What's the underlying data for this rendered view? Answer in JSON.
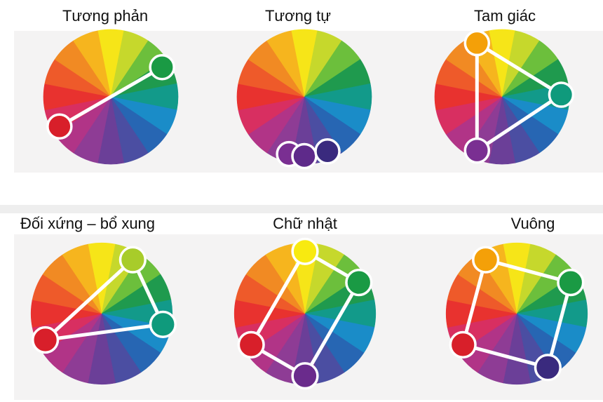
{
  "schemes": [
    {
      "title": "Tương phản",
      "markers": [
        {
          "angle": 60,
          "color": "#1a9a44"
        },
        {
          "angle": 240,
          "color": "#d81f2a"
        }
      ]
    },
    {
      "title": "Tương tự",
      "markers": [
        {
          "angle": 195,
          "color": "#7a2f92"
        },
        {
          "angle": 180,
          "color": "#5e2a8a"
        },
        {
          "angle": 157,
          "color": "#3a2a7e"
        }
      ]
    },
    {
      "title": "Tam giác",
      "markers": [
        {
          "angle": 335,
          "color": "#f4a008"
        },
        {
          "angle": 88,
          "color": "#0f9a7c"
        },
        {
          "angle": 205,
          "color": "#7a2f92"
        }
      ]
    },
    {
      "title": "Đối xứng – bổ xung",
      "markers": [
        {
          "angle": 30,
          "color": "#a8cc2a"
        },
        {
          "angle": 100,
          "color": "#0f9a7c"
        },
        {
          "angle": 245,
          "color": "#d81f2a"
        }
      ]
    },
    {
      "title": "Chữ nhật",
      "markers": [
        {
          "angle": 0,
          "color": "#f8ea10"
        },
        {
          "angle": 60,
          "color": "#1a9a44"
        },
        {
          "angle": 180,
          "color": "#6a2b8c"
        },
        {
          "angle": 240,
          "color": "#d81f2a"
        }
      ]
    },
    {
      "title": "Vuông",
      "markers": [
        {
          "angle": 330,
          "color": "#f4a008"
        },
        {
          "angle": 60,
          "color": "#1a9a44"
        },
        {
          "angle": 150,
          "color": "#3a2a7e"
        },
        {
          "angle": 240,
          "color": "#d81f2a"
        }
      ]
    }
  ],
  "wheel_colors": [
    "#f6e518",
    "#c6d82c",
    "#6cbf3c",
    "#1f9a4e",
    "#129a8a",
    "#1a8cc8",
    "#2766b3",
    "#4b4ea2",
    "#6b3f98",
    "#8e3c95",
    "#b13487",
    "#d82f61",
    "#e8322f",
    "#ee5a2a",
    "#f18a23",
    "#f6b51e"
  ]
}
